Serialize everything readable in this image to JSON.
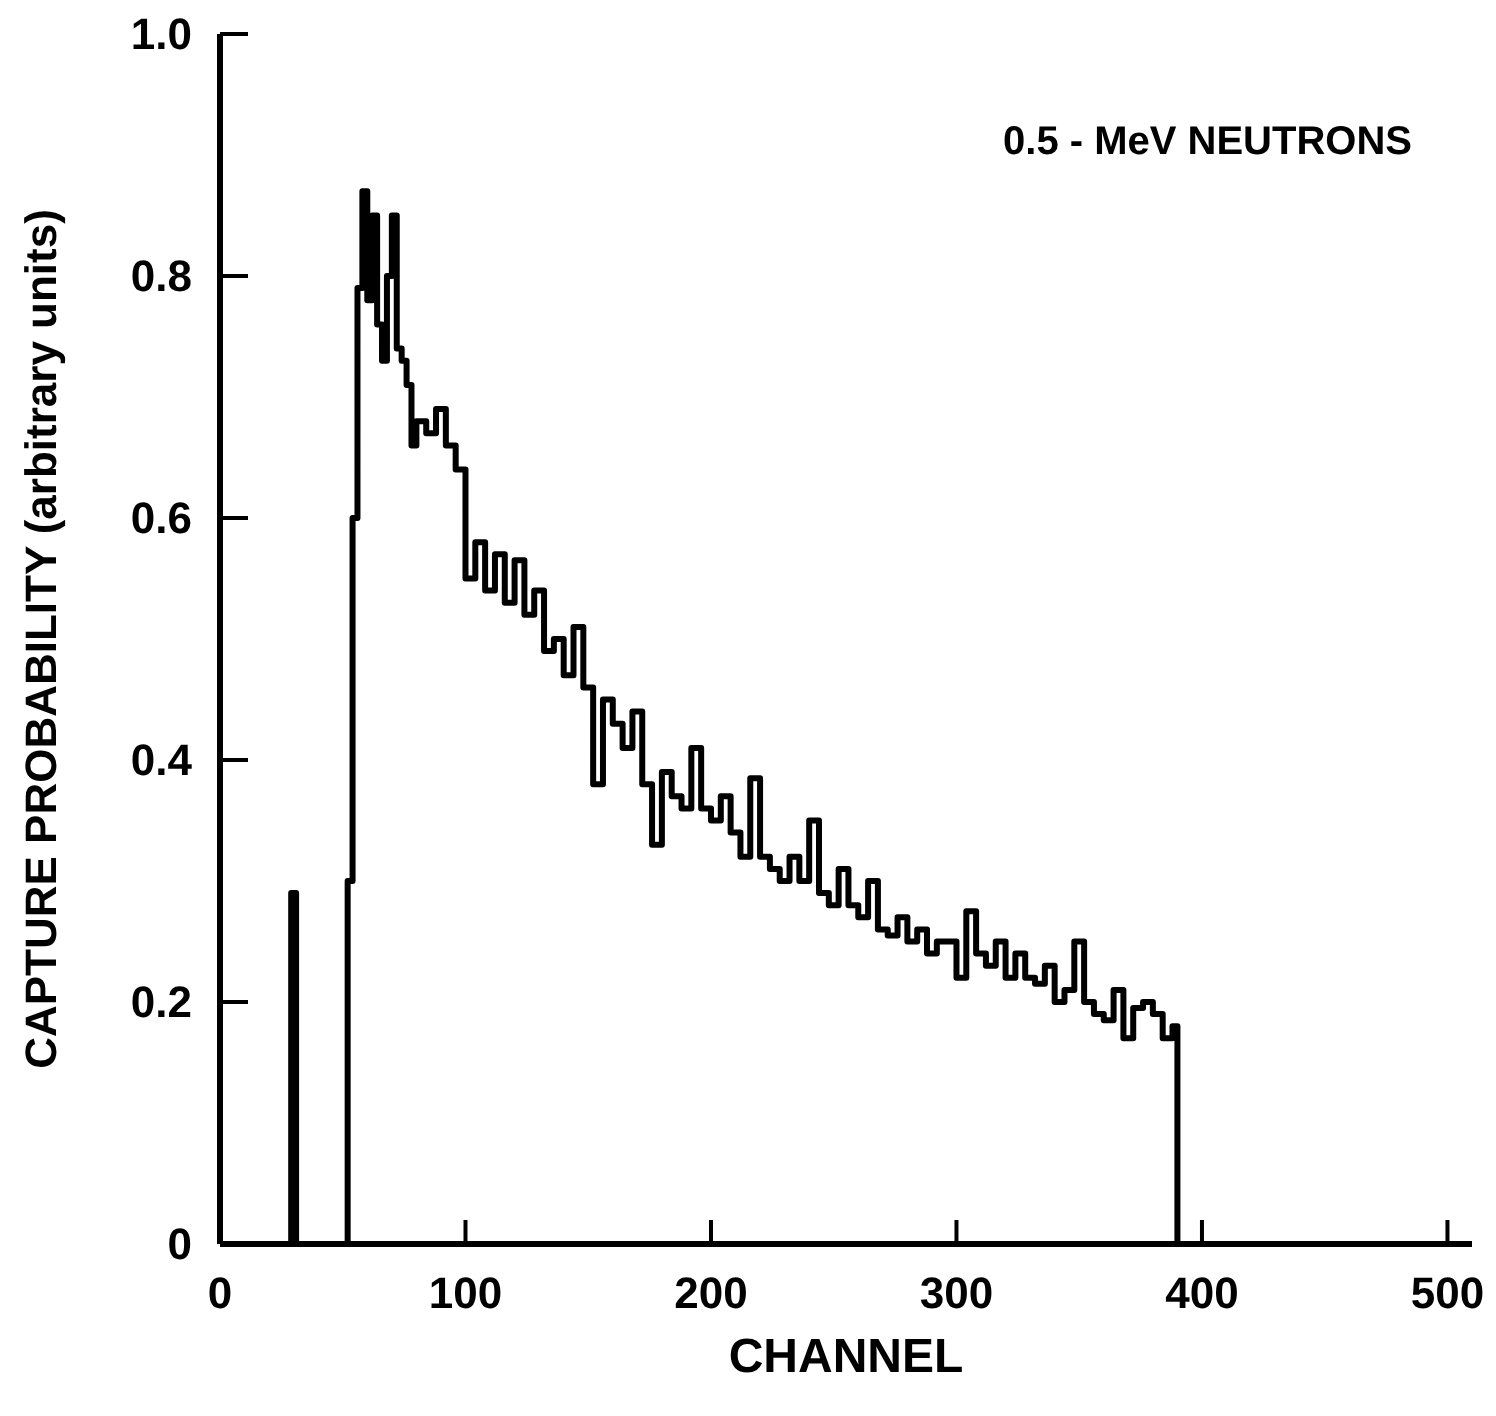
{
  "chart_data": {
    "type": "step",
    "xlabel": "CHANNEL",
    "ylabel": "CAPTURE PROBABILITY (arbitrary units)",
    "annotations": [
      "0.5 - MeV NEUTRONS"
    ],
    "xlim": [
      0,
      510
    ],
    "xticks": [
      0,
      100,
      200,
      300,
      400,
      500
    ],
    "ylim": [
      0,
      1
    ],
    "yticks": [
      0,
      0.2,
      0.4,
      0.6,
      0.8,
      {
        "value": 1,
        "label": "1.0"
      }
    ],
    "grid": false,
    "marker": "none",
    "line_style": "solid",
    "series": [
      {
        "color": "#000000",
        "x": [
          0,
          29,
          31,
          52,
          54,
          56,
          58,
          60,
          62,
          64,
          66,
          68,
          70,
          72,
          74,
          76,
          78,
          80,
          84,
          88,
          92,
          96,
          100,
          104,
          108,
          112,
          116,
          120,
          124,
          128,
          132,
          136,
          140,
          144,
          148,
          152,
          156,
          160,
          164,
          168,
          172,
          176,
          180,
          184,
          188,
          192,
          196,
          200,
          204,
          208,
          212,
          216,
          220,
          224,
          228,
          232,
          236,
          240,
          244,
          248,
          252,
          256,
          260,
          264,
          268,
          272,
          276,
          280,
          284,
          288,
          292,
          296,
          300,
          304,
          308,
          312,
          316,
          320,
          324,
          328,
          332,
          336,
          340,
          344,
          348,
          352,
          356,
          360,
          364,
          368,
          372,
          376,
          380,
          384,
          388,
          390
        ],
        "values": [
          0,
          0.29,
          0,
          0.3,
          0.6,
          0.79,
          0.87,
          0.78,
          0.85,
          0.76,
          0.73,
          0.8,
          0.85,
          0.74,
          0.73,
          0.71,
          0.66,
          0.68,
          0.67,
          0.69,
          0.66,
          0.64,
          0.55,
          0.58,
          0.54,
          0.57,
          0.53,
          0.565,
          0.52,
          0.54,
          0.49,
          0.5,
          0.47,
          0.51,
          0.46,
          0.38,
          0.45,
          0.43,
          0.41,
          0.44,
          0.38,
          0.33,
          0.39,
          0.37,
          0.36,
          0.41,
          0.36,
          0.35,
          0.37,
          0.34,
          0.32,
          0.385,
          0.32,
          0.31,
          0.3,
          0.32,
          0.3,
          0.35,
          0.29,
          0.28,
          0.31,
          0.28,
          0.27,
          0.3,
          0.26,
          0.255,
          0.27,
          0.25,
          0.26,
          0.24,
          0.25,
          0.25,
          0.22,
          0.275,
          0.24,
          0.23,
          0.25,
          0.22,
          0.24,
          0.22,
          0.215,
          0.23,
          0.2,
          0.21,
          0.25,
          0.2,
          0.19,
          0.185,
          0.21,
          0.17,
          0.195,
          0.2,
          0.19,
          0.17,
          0.18,
          0
        ]
      }
    ]
  }
}
